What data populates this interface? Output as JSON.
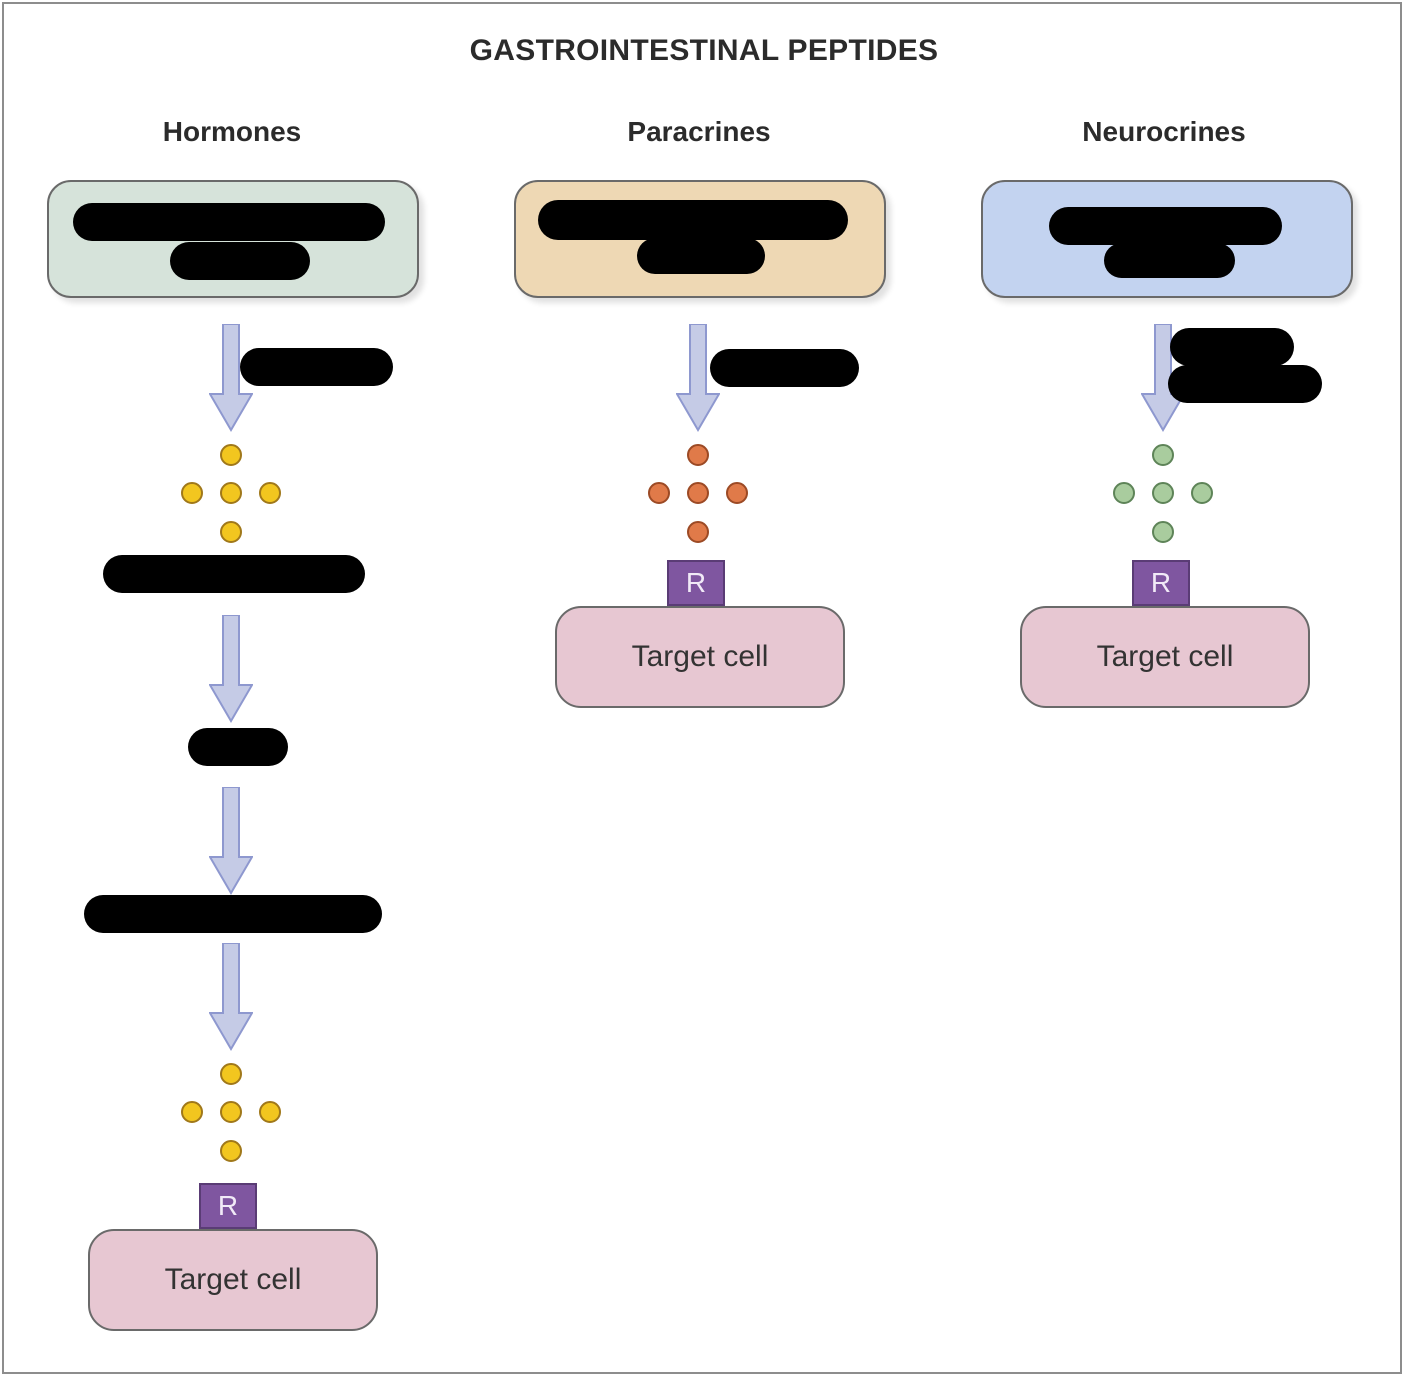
{
  "title": "GASTROINTESTINAL PEPTIDES",
  "columns": [
    {
      "heading": "Hormones",
      "box_color": "#d6e3da",
      "molecule_color": "#f2c61f"
    },
    {
      "heading": "Paracrines",
      "box_color": "#eed8b4",
      "molecule_color": "#e07a49"
    },
    {
      "heading": "Neurocrines",
      "box_color": "#c3d3f0",
      "molecule_color": "#a9cc9e"
    }
  ],
  "receptor_label": "R",
  "target_label": "Target cell",
  "arrow_color": "#c5cbe6",
  "redaction_color": "#000000"
}
